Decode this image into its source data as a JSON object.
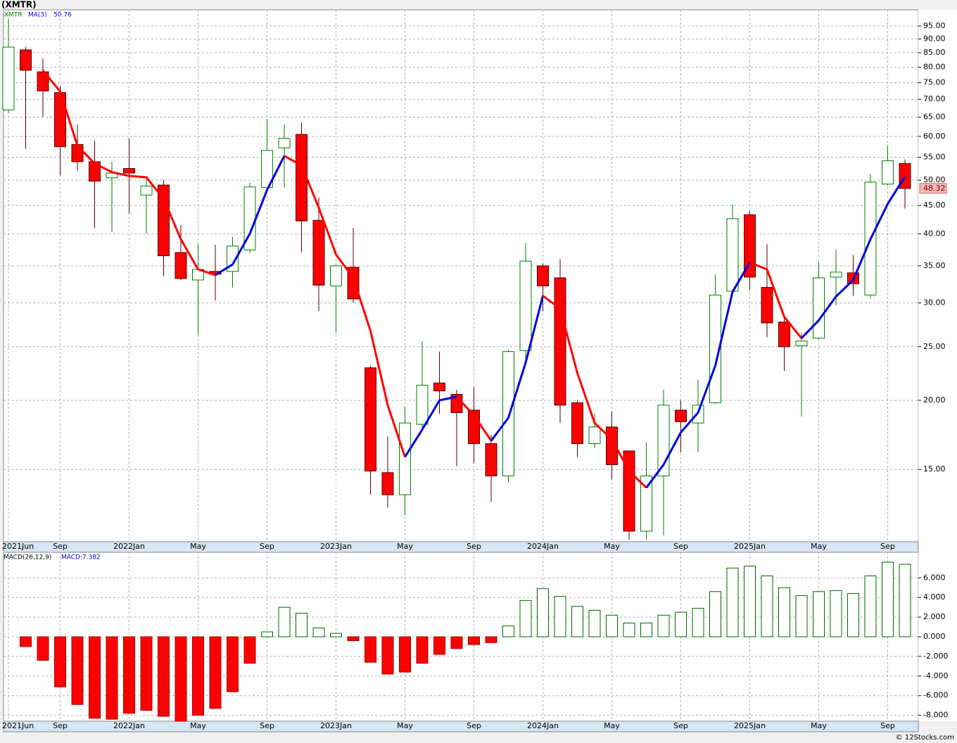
{
  "chart_data": [
    {
      "type": "candlestick",
      "title": "(XMTR)",
      "legend": "XMTR",
      "categories": [
        "2021Jun",
        null,
        null,
        "Sep",
        null,
        null,
        null,
        "2022Jan",
        null,
        null,
        null,
        "May",
        null,
        null,
        null,
        "Sep",
        null,
        null,
        null,
        "2023Jan",
        null,
        null,
        null,
        "May",
        null,
        null,
        null,
        "Sep",
        null,
        null,
        null,
        "2024Jan",
        null,
        null,
        null,
        "May",
        null,
        null,
        null,
        "Sep",
        null,
        null,
        null,
        "2025Jan",
        null,
        null,
        null,
        "May",
        null,
        null,
        null,
        "Sep",
        null
      ],
      "open": [
        67,
        86,
        78.5,
        72,
        58,
        54,
        50.5,
        52.5,
        47,
        49,
        37,
        33,
        34.2,
        34.2,
        37.4,
        48.5,
        57.2,
        60.5,
        42.3,
        32.2,
        34.8,
        22.9,
        14.8,
        13.5,
        18.1,
        21.5,
        20.5,
        19.2,
        16.7,
        14.6,
        24.6,
        35,
        33.3,
        19.8,
        16.7,
        17.9,
        16.2,
        11.6,
        14.6,
        19.2,
        18.2,
        19.8,
        31.5,
        43.3,
        32,
        27.7,
        25.1,
        25.9,
        33.4,
        34,
        31,
        49.2,
        53.6
      ],
      "high": [
        98,
        87,
        83,
        74,
        63,
        59,
        54,
        59.5,
        50.2,
        50,
        41.5,
        38.3,
        38.2,
        39.5,
        49.5,
        64.5,
        63,
        63.5,
        46.5,
        35.2,
        41,
        23.1,
        17.2,
        19.5,
        25.6,
        24.5,
        20.9,
        21.1,
        17.3,
        24.7,
        38.5,
        35.4,
        36,
        20,
        18.9,
        19.1,
        16.2,
        16.8,
        20.9,
        20,
        21.8,
        33.7,
        45.2,
        44,
        38.3,
        28.2,
        26.5,
        35.6,
        37.5,
        36.6,
        51.3,
        57.8,
        54.5
      ],
      "low": [
        66,
        57,
        65,
        51,
        52,
        41,
        40.3,
        43.5,
        40,
        33.5,
        33,
        26.3,
        30.3,
        32,
        36.9,
        48,
        48.5,
        37,
        29,
        26.5,
        30,
        13.5,
        12.8,
        12.4,
        17.6,
        18.9,
        15.2,
        15.4,
        13.1,
        14.2,
        23.3,
        29,
        18.2,
        15.8,
        16.4,
        14.4,
        11.2,
        11.2,
        11.4,
        16.1,
        16.1,
        19.7,
        31,
        31.7,
        26,
        22.6,
        18.7,
        25.8,
        29.7,
        30.9,
        30.6,
        48.9,
        44.4
      ],
      "close": [
        87,
        79,
        72.5,
        57.5,
        54,
        49.8,
        51.5,
        51.5,
        48.8,
        36.5,
        33.2,
        34.5,
        33.8,
        38,
        48.6,
        56.6,
        59.5,
        42.2,
        32.3,
        35,
        30.5,
        14.9,
        13.5,
        18.2,
        21.3,
        20.8,
        19,
        16.7,
        14.6,
        24.5,
        35.7,
        32.2,
        19.6,
        16.7,
        17.9,
        15.3,
        11.6,
        14.6,
        19.6,
        18.3,
        19.6,
        31,
        42.6,
        33.4,
        27.6,
        25,
        25.6,
        33.3,
        34.1,
        32.5,
        49.6,
        54.2,
        48.32
      ],
      "up_color": "#008000",
      "down_color": "#ff0000",
      "series": [
        {
          "name": "MA(3)",
          "color": "#0000dd",
          "down_color": "#ff0000",
          "values": [
            null,
            null,
            79,
            72.3,
            57.7,
            53.6,
            51.7,
            50.9,
            50.6,
            46.3,
            39.1,
            34.5,
            33.7,
            35.2,
            40,
            48,
            55.3,
            53.2,
            44.6,
            36.7,
            33.3,
            26.7,
            19.6,
            15.8,
            17.7,
            20,
            20.3,
            18.8,
            16.9,
            18.6,
            23.4,
            30.9,
            29.3,
            22.4,
            18.2,
            17,
            14.9,
            13.9,
            15.3,
            17.5,
            19,
            23.1,
            31.4,
            35.5,
            34.5,
            28.3,
            25.9,
            27.9,
            30.8,
            33,
            39.1,
            45.3,
            50.76
          ]
        }
      ],
      "log": true,
      "ylim": [
        11.1,
        101.6
      ],
      "yticks": [
        {
          "value": 95,
          "label": "95.00"
        },
        {
          "value": 90,
          "label": "90.00"
        },
        {
          "value": 85,
          "label": "85.00"
        },
        {
          "value": 80,
          "label": "80.00"
        },
        {
          "value": 75,
          "label": "75.00"
        },
        {
          "value": 70,
          "label": "70.00"
        },
        {
          "value": 65,
          "label": "65.00"
        },
        {
          "value": 60,
          "label": "60.00"
        },
        {
          "value": 55,
          "label": "55.00"
        },
        {
          "value": 50,
          "label": "50.00"
        },
        {
          "value": 45,
          "label": "45.00"
        },
        {
          "value": 40,
          "label": "40.00"
        },
        {
          "value": 35,
          "label": "35.00"
        },
        {
          "value": 30,
          "label": "30.00"
        },
        {
          "value": 25,
          "label": "25.00"
        },
        {
          "value": 20,
          "label": "20.00"
        },
        {
          "value": 15,
          "label": "15.00"
        }
      ],
      "grid": true
    },
    {
      "type": "bar",
      "title": "MACD(26,12,9)",
      "current_label": "MACD:7.382",
      "categories": [
        "2021Jun",
        null,
        null,
        "Sep",
        null,
        null,
        null,
        "2022Jan",
        null,
        null,
        null,
        "May",
        null,
        null,
        null,
        "Sep",
        null,
        null,
        null,
        "2023Jan",
        null,
        null,
        null,
        "May",
        null,
        null,
        null,
        "Sep",
        null,
        null,
        null,
        "2024Jan",
        null,
        null,
        null,
        "May",
        null,
        null,
        null,
        "Sep",
        null,
        null,
        null,
        "2025Jan",
        null,
        null,
        null,
        "May",
        null,
        null,
        null,
        "Sep",
        null
      ],
      "values": [
        null,
        -1,
        -2.4,
        -5.1,
        -6.9,
        -8.3,
        -8.4,
        -7.8,
        -7.5,
        -8.1,
        -8.6,
        -8,
        -7.3,
        -5.6,
        -2.7,
        0.5,
        3,
        2.4,
        0.9,
        0.35,
        -0.4,
        -2.6,
        -3.8,
        -3.6,
        -2.7,
        -1.8,
        -1.2,
        -0.8,
        -0.6,
        1.1,
        3.7,
        4.9,
        4.1,
        3.1,
        2.7,
        2.2,
        1.4,
        1.4,
        2.2,
        2.5,
        2.9,
        4.6,
        7,
        7.2,
        6.2,
        5,
        4.2,
        4.6,
        4.7,
        4.4,
        6.2,
        7.6,
        7.382
      ],
      "up_color": "#006400",
      "down_color": "#ff0000",
      "ylim": [
        -8.6,
        8.6
      ],
      "yticks": [
        {
          "value": 6,
          "label": "6.000"
        },
        {
          "value": 4,
          "label": "4.000"
        },
        {
          "value": 2,
          "label": "2.000"
        },
        {
          "value": 0,
          "label": "0.000"
        },
        {
          "value": -2,
          "label": "-2.000"
        },
        {
          "value": -4,
          "label": "-4.000"
        },
        {
          "value": -6,
          "label": "-6.000"
        },
        {
          "value": -8,
          "label": "-8.000"
        }
      ],
      "grid": true
    }
  ],
  "footer": "© 12Stocks.com"
}
